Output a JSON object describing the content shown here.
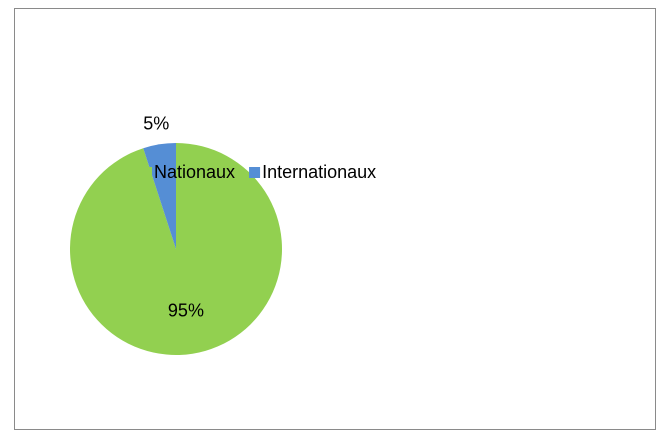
{
  "chart_data": {
    "type": "pie",
    "categories": [
      "Nationaux",
      "Internationaux"
    ],
    "values": [
      95,
      5
    ],
    "value_labels": [
      "95%",
      "5%"
    ],
    "colors": [
      "#92d050",
      "#558ed5"
    ],
    "legend": "right"
  }
}
